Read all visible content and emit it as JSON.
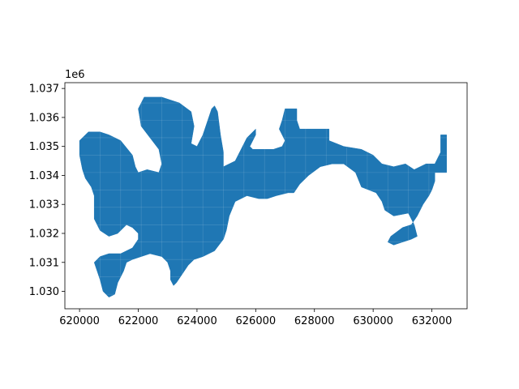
{
  "map_data": {
    "type": "geometry-plot",
    "fill_color": "#1f77b4",
    "edge_color": "#ffffff",
    "xlim": [
      619500,
      633200
    ],
    "ylim": [
      1029400,
      1037200
    ],
    "x_ticks": [
      620000,
      622000,
      624000,
      626000,
      628000,
      630000,
      632000
    ],
    "x_tick_labels": [
      "620000",
      "622000",
      "624000",
      "626000",
      "628000",
      "630000",
      "632000"
    ],
    "y_ticks": [
      1030000,
      1031000,
      1032000,
      1033000,
      1034000,
      1035000,
      1036000,
      1037000
    ],
    "y_tick_labels": [
      "1.030",
      "1.031",
      "1.032",
      "1.033",
      "1.034",
      "1.035",
      "1.036",
      "1.037"
    ],
    "y_offset_text": "1e6",
    "polygon": [
      [
        620000,
        1035200
      ],
      [
        620300,
        1035500
      ],
      [
        620700,
        1035500
      ],
      [
        621000,
        1035400
      ],
      [
        621400,
        1035200
      ],
      [
        621800,
        1034700
      ],
      [
        621900,
        1034300
      ],
      [
        622000,
        1034100
      ],
      [
        622300,
        1034200
      ],
      [
        622700,
        1034100
      ],
      [
        622800,
        1034400
      ],
      [
        622700,
        1034900
      ],
      [
        622400,
        1035300
      ],
      [
        622100,
        1035700
      ],
      [
        622000,
        1036300
      ],
      [
        622200,
        1036700
      ],
      [
        622800,
        1036700
      ],
      [
        623400,
        1036500
      ],
      [
        623800,
        1036200
      ],
      [
        623900,
        1035700
      ],
      [
        623800,
        1035100
      ],
      [
        624000,
        1035000
      ],
      [
        624200,
        1035400
      ],
      [
        624500,
        1036300
      ],
      [
        624600,
        1036400
      ],
      [
        624700,
        1036200
      ],
      [
        624800,
        1035400
      ],
      [
        624900,
        1034800
      ],
      [
        624900,
        1034300
      ],
      [
        625300,
        1034500
      ],
      [
        625700,
        1035300
      ],
      [
        626000,
        1035600
      ],
      [
        626000,
        1035400
      ],
      [
        625800,
        1035000
      ],
      [
        625900,
        1034900
      ],
      [
        626600,
        1034900
      ],
      [
        626900,
        1035000
      ],
      [
        627000,
        1035200
      ],
      [
        626800,
        1035600
      ],
      [
        626900,
        1035900
      ],
      [
        627000,
        1036300
      ],
      [
        627400,
        1036300
      ],
      [
        627400,
        1035900
      ],
      [
        627500,
        1035600
      ],
      [
        627900,
        1035600
      ],
      [
        628500,
        1035600
      ],
      [
        628500,
        1035200
      ],
      [
        629000,
        1035000
      ],
      [
        629600,
        1034900
      ],
      [
        630000,
        1034700
      ],
      [
        630300,
        1034400
      ],
      [
        630700,
        1034300
      ],
      [
        631100,
        1034400
      ],
      [
        631400,
        1034200
      ],
      [
        631800,
        1034400
      ],
      [
        632100,
        1034400
      ],
      [
        632300,
        1034800
      ],
      [
        632300,
        1035400
      ],
      [
        632500,
        1035400
      ],
      [
        632500,
        1034100
      ],
      [
        632100,
        1034100
      ],
      [
        632100,
        1033800
      ],
      [
        632000,
        1033500
      ],
      [
        631900,
        1033300
      ],
      [
        631700,
        1033000
      ],
      [
        631500,
        1032600
      ],
      [
        631300,
        1032300
      ],
      [
        631000,
        1032200
      ],
      [
        630600,
        1031900
      ],
      [
        630500,
        1031700
      ],
      [
        630700,
        1031600
      ],
      [
        631000,
        1031700
      ],
      [
        631300,
        1031800
      ],
      [
        631500,
        1031900
      ],
      [
        631400,
        1032300
      ],
      [
        631200,
        1032700
      ],
      [
        630700,
        1032600
      ],
      [
        630400,
        1032800
      ],
      [
        630300,
        1033100
      ],
      [
        630100,
        1033400
      ],
      [
        629600,
        1033600
      ],
      [
        629400,
        1034100
      ],
      [
        629000,
        1034400
      ],
      [
        628600,
        1034400
      ],
      [
        628200,
        1034300
      ],
      [
        627800,
        1034000
      ],
      [
        627500,
        1033700
      ],
      [
        627300,
        1033400
      ],
      [
        627100,
        1033400
      ],
      [
        626700,
        1033300
      ],
      [
        626400,
        1033200
      ],
      [
        626100,
        1033200
      ],
      [
        625700,
        1033300
      ],
      [
        625300,
        1033100
      ],
      [
        625100,
        1032600
      ],
      [
        625000,
        1032100
      ],
      [
        624900,
        1031800
      ],
      [
        624600,
        1031400
      ],
      [
        624200,
        1031200
      ],
      [
        623900,
        1031100
      ],
      [
        623700,
        1030900
      ],
      [
        623500,
        1030600
      ],
      [
        623300,
        1030300
      ],
      [
        623200,
        1030200
      ],
      [
        623100,
        1030400
      ],
      [
        623100,
        1030700
      ],
      [
        623000,
        1031000
      ],
      [
        622800,
        1031200
      ],
      [
        622400,
        1031300
      ],
      [
        622100,
        1031200
      ],
      [
        621800,
        1031100
      ],
      [
        621600,
        1031000
      ],
      [
        621500,
        1030700
      ],
      [
        621300,
        1030300
      ],
      [
        621200,
        1029900
      ],
      [
        621000,
        1029800
      ],
      [
        620800,
        1030000
      ],
      [
        620700,
        1030400
      ],
      [
        620600,
        1030700
      ],
      [
        620500,
        1031000
      ],
      [
        620700,
        1031200
      ],
      [
        621000,
        1031300
      ],
      [
        621400,
        1031300
      ],
      [
        621800,
        1031500
      ],
      [
        622000,
        1031800
      ],
      [
        622000,
        1032000
      ],
      [
        621800,
        1032200
      ],
      [
        621600,
        1032300
      ],
      [
        621300,
        1032000
      ],
      [
        621000,
        1031900
      ],
      [
        620700,
        1032100
      ],
      [
        620500,
        1032500
      ],
      [
        620500,
        1032900
      ],
      [
        620500,
        1033300
      ],
      [
        620400,
        1033600
      ],
      [
        620200,
        1033900
      ],
      [
        620100,
        1034200
      ],
      [
        620000,
        1034700
      ]
    ]
  }
}
